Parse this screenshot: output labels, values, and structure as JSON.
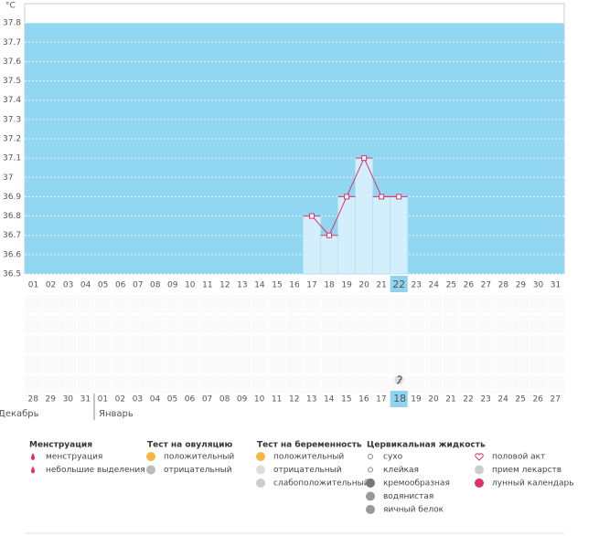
{
  "chart_data": {
    "type": "line",
    "y_label": "°C",
    "categories": [
      "01",
      "02",
      "03",
      "04",
      "05",
      "06",
      "07",
      "08",
      "09",
      "10",
      "11",
      "12",
      "13",
      "14",
      "15",
      "16",
      "17",
      "18",
      "19",
      "20",
      "21",
      "22",
      "23",
      "24",
      "25",
      "26",
      "27",
      "28",
      "29",
      "30",
      "31"
    ],
    "category_backgrounds": [
      null,
      null,
      null,
      null,
      null,
      null,
      null,
      null,
      null,
      null,
      null,
      null,
      null,
      null,
      null,
      null,
      null,
      null,
      null,
      null,
      null,
      "#8fd3ee",
      null,
      null,
      null,
      null,
      null,
      null,
      null,
      null,
      null
    ],
    "values": [
      null,
      null,
      null,
      null,
      null,
      null,
      null,
      null,
      null,
      null,
      null,
      null,
      null,
      null,
      null,
      null,
      36.8,
      36.7,
      36.9,
      37.1,
      36.9,
      36.9,
      null,
      null,
      null,
      null,
      null,
      null,
      null,
      null,
      null
    ],
    "color": "#e0306a",
    "bar_color": "#d3effc",
    "plot_color": "#92d7f1",
    "ylim": [
      36.5,
      37.9
    ],
    "yticks": [
      36.5,
      36.6,
      36.7,
      36.8,
      36.9,
      37,
      37.1,
      37.2,
      37.3,
      37.4,
      37.5,
      37.6,
      37.7,
      37.8
    ],
    "grid": true,
    "calendar_dates": [
      {
        "text": "28",
        "color": "#d6336c"
      },
      {
        "text": "29",
        "color": "#d6336c"
      },
      {
        "text": "30",
        "color": "#666"
      },
      {
        "text": "31",
        "color": "#666"
      },
      {
        "text": "01",
        "color": "#666"
      },
      {
        "text": "02",
        "color": "#666"
      },
      {
        "text": "03",
        "color": "#666"
      },
      {
        "text": "04",
        "color": "#d6336c"
      },
      {
        "text": "05",
        "color": "#d6336c"
      },
      {
        "text": "06",
        "color": "#666"
      },
      {
        "text": "07",
        "color": "#666"
      },
      {
        "text": "08",
        "color": "#666"
      },
      {
        "text": "09",
        "color": "#666"
      },
      {
        "text": "10",
        "color": "#666"
      },
      {
        "text": "11",
        "color": "#d6336c"
      },
      {
        "text": "12",
        "color": "#d6336c"
      },
      {
        "text": "13",
        "color": "#666"
      },
      {
        "text": "14",
        "color": "#666"
      },
      {
        "text": "15",
        "color": "#666"
      },
      {
        "text": "16",
        "color": "#666"
      },
      {
        "text": "17",
        "color": "#666"
      },
      {
        "text": "18",
        "color": "#666",
        "background": "#8fd3ee"
      },
      {
        "text": "19",
        "color": "#d6336c"
      },
      {
        "text": "20",
        "color": "#666"
      },
      {
        "text": "21",
        "color": "#666"
      },
      {
        "text": "22",
        "color": "#666"
      },
      {
        "text": "23",
        "color": "#666"
      },
      {
        "text": "24",
        "color": "#666"
      },
      {
        "text": "25",
        "color": "#d6336c"
      },
      {
        "text": "26",
        "color": "#d6336c"
      },
      {
        "text": "27",
        "color": "#666"
      }
    ],
    "months": [
      "Декабрь",
      "Январь"
    ],
    "legend": [
      {
        "title": "Менструация",
        "items": [
          "менструация",
          "небольшие выделения"
        ]
      },
      {
        "title": "Тест на овуляцию",
        "items": [
          "положительный",
          "отрицательный"
        ]
      },
      {
        "title": "Тест на беременность",
        "items": [
          "положительный",
          "отрицательный",
          "слабоположительный"
        ]
      },
      {
        "title": "Цервикальная жидкость",
        "items": [
          "сухо",
          "клейкая",
          "кремообразная",
          "водянистая",
          "яичный белок"
        ]
      },
      {
        "items": [
          "половой акт",
          "прием лекарств",
          "лунный календарь"
        ]
      }
    ]
  }
}
